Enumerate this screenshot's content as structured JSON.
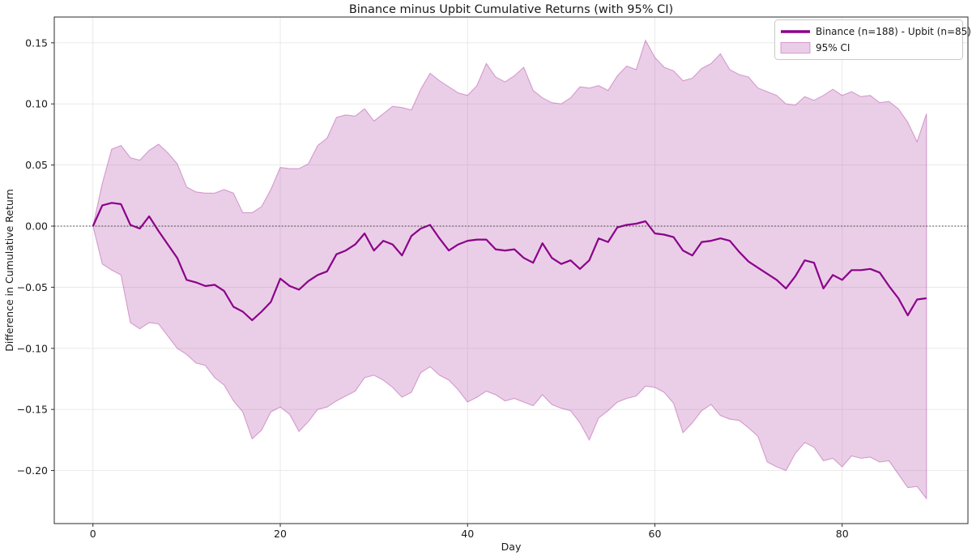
{
  "title": "Binance minus Upbit Cumulative Returns (with 95% CI)",
  "legend": {
    "items": [
      {
        "label": "Binance (n=188) - Upbit (n=85)",
        "swatch": "line"
      },
      {
        "label": "95% CI",
        "swatch": "patch"
      }
    ],
    "position": "upper right"
  },
  "colors": {
    "line": "#8b008b",
    "band_base": "#b95caf",
    "band_alpha": 0.3,
    "band_edge_alpha": 0.55,
    "grid": "#e7e7e7",
    "spine": "#2b2b2b",
    "zero_line": "#3a3a3a",
    "background": "#ffffff"
  },
  "chart_data": {
    "type": "line",
    "title": "Binance minus Upbit Cumulative Returns (with 95% CI)",
    "xlabel": "Day",
    "ylabel": "Difference in Cumulative Return",
    "grid": true,
    "zero_line": true,
    "legend_position": "upper right",
    "xlim": [
      -4.13,
      93.43
    ],
    "ylim": [
      -0.2434,
      0.1711
    ],
    "xticks": [
      0,
      20,
      40,
      60,
      80
    ],
    "yticks": [
      0.15,
      0.1,
      0.05,
      0.0,
      -0.05,
      -0.1,
      -0.15,
      -0.2
    ],
    "x": [
      0,
      1,
      2,
      3,
      4,
      5,
      6,
      7,
      8,
      9,
      10,
      11,
      12,
      13,
      14,
      15,
      16,
      17,
      18,
      19,
      20,
      21,
      22,
      23,
      24,
      25,
      26,
      27,
      28,
      29,
      30,
      31,
      32,
      33,
      34,
      35,
      36,
      37,
      38,
      39,
      40,
      41,
      42,
      43,
      44,
      45,
      46,
      47,
      48,
      49,
      50,
      51,
      52,
      53,
      54,
      55,
      56,
      57,
      58,
      59,
      60,
      61,
      62,
      63,
      64,
      65,
      66,
      67,
      68,
      69,
      70,
      71,
      72,
      73,
      74,
      75,
      76,
      77,
      78,
      79,
      80,
      81,
      82,
      83,
      84,
      85,
      86,
      87,
      88,
      89
    ],
    "series": [
      {
        "name": "Binance (n=188) - Upbit (n=85)",
        "role": "mean-difference",
        "values": [
          0.0,
          0.017,
          0.019,
          0.018,
          0.001,
          -0.002,
          0.008,
          -0.004,
          -0.015,
          -0.026,
          -0.044,
          -0.046,
          -0.049,
          -0.048,
          -0.053,
          -0.066,
          -0.07,
          -0.077,
          -0.07,
          -0.062,
          -0.043,
          -0.049,
          -0.052,
          -0.045,
          -0.04,
          -0.037,
          -0.023,
          -0.02,
          -0.015,
          -0.006,
          -0.02,
          -0.012,
          -0.015,
          -0.024,
          -0.008,
          -0.002,
          0.001,
          -0.01,
          -0.02,
          -0.015,
          -0.012,
          -0.011,
          -0.011,
          -0.019,
          -0.02,
          -0.019,
          -0.026,
          -0.03,
          -0.014,
          -0.026,
          -0.031,
          -0.028,
          -0.035,
          -0.028,
          -0.01,
          -0.013,
          -0.001,
          0.001,
          0.002,
          0.004,
          -0.006,
          -0.007,
          -0.009,
          -0.02,
          -0.024,
          -0.013,
          -0.012,
          -0.01,
          -0.012,
          -0.021,
          -0.029,
          -0.034,
          -0.039,
          -0.044,
          -0.051,
          -0.041,
          -0.028,
          -0.03,
          -0.051,
          -0.04,
          -0.044,
          -0.036,
          -0.036,
          -0.035,
          -0.038,
          -0.049,
          -0.059,
          -0.073,
          -0.06,
          -0.059
        ]
      },
      {
        "name": "95% CI upper",
        "role": "ci-upper",
        "values": [
          0.0,
          0.035,
          0.063,
          0.066,
          0.056,
          0.054,
          0.062,
          0.067,
          0.06,
          0.051,
          0.032,
          0.028,
          0.027,
          0.027,
          0.03,
          0.027,
          0.011,
          0.011,
          0.016,
          0.03,
          0.048,
          0.047,
          0.047,
          0.051,
          0.066,
          0.072,
          0.089,
          0.091,
          0.09,
          0.096,
          0.086,
          0.092,
          0.098,
          0.097,
          0.095,
          0.112,
          0.125,
          0.119,
          0.114,
          0.109,
          0.107,
          0.115,
          0.133,
          0.122,
          0.118,
          0.123,
          0.13,
          0.111,
          0.105,
          0.101,
          0.1,
          0.105,
          0.114,
          0.113,
          0.115,
          0.111,
          0.123,
          0.131,
          0.128,
          0.152,
          0.138,
          0.13,
          0.127,
          0.119,
          0.121,
          0.129,
          0.133,
          0.141,
          0.128,
          0.124,
          0.122,
          0.113,
          0.11,
          0.107,
          0.1,
          0.099,
          0.106,
          0.103,
          0.107,
          0.112,
          0.107,
          0.11,
          0.106,
          0.107,
          0.101,
          0.102,
          0.096,
          0.085,
          0.069,
          0.092
        ]
      },
      {
        "name": "95% CI lower",
        "role": "ci-lower",
        "values": [
          0.0,
          -0.031,
          -0.036,
          -0.04,
          -0.079,
          -0.084,
          -0.079,
          -0.08,
          -0.09,
          -0.1,
          -0.105,
          -0.112,
          -0.114,
          -0.124,
          -0.13,
          -0.143,
          -0.152,
          -0.174,
          -0.167,
          -0.152,
          -0.148,
          -0.154,
          -0.168,
          -0.16,
          -0.15,
          -0.148,
          -0.143,
          -0.139,
          -0.135,
          -0.124,
          -0.122,
          -0.126,
          -0.132,
          -0.14,
          -0.136,
          -0.12,
          -0.115,
          -0.122,
          -0.126,
          -0.134,
          -0.144,
          -0.14,
          -0.135,
          -0.138,
          -0.143,
          -0.141,
          -0.144,
          -0.147,
          -0.138,
          -0.146,
          -0.149,
          -0.151,
          -0.161,
          -0.175,
          -0.157,
          -0.151,
          -0.144,
          -0.141,
          -0.139,
          -0.131,
          -0.132,
          -0.136,
          -0.145,
          -0.169,
          -0.161,
          -0.151,
          -0.146,
          -0.155,
          -0.158,
          -0.159,
          -0.165,
          -0.172,
          -0.193,
          -0.197,
          -0.2,
          -0.186,
          -0.177,
          -0.181,
          -0.192,
          -0.19,
          -0.197,
          -0.188,
          -0.19,
          -0.189,
          -0.193,
          -0.192,
          -0.203,
          -0.214,
          -0.213,
          -0.223
        ]
      }
    ]
  }
}
